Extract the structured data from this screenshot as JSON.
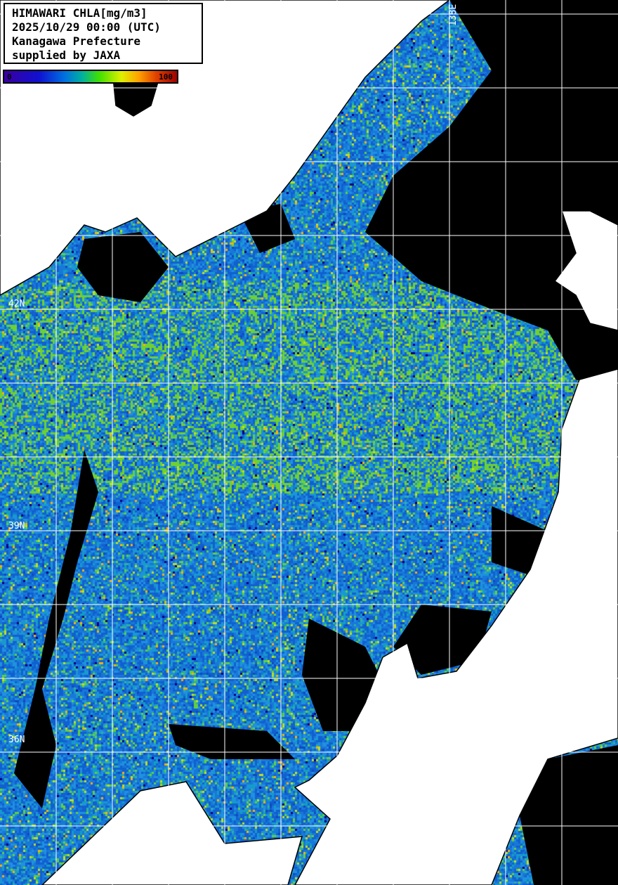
{
  "title_box": {
    "lines": [
      "HIMAWARI CHLA[mg/m3]",
      "2025/10/29 00:00 (UTC)",
      "Kanagawa Prefecture",
      "supplied by JAXA"
    ]
  },
  "colorbar": {
    "min_label": "0",
    "max_label": "100",
    "colors": [
      "#3a00a0",
      "#1010d0",
      "#0070e0",
      "#00b0a0",
      "#40e000",
      "#e0f000",
      "#ffa000",
      "#e04000",
      "#a00000"
    ]
  },
  "grid_labels": {
    "lat_42": "42N",
    "lat_39": "39N",
    "lat_36": "36N",
    "lon_138": "138E"
  },
  "colors": {
    "land": "#ffffff",
    "cloud": "#000000",
    "grid": "#ffffff"
  }
}
